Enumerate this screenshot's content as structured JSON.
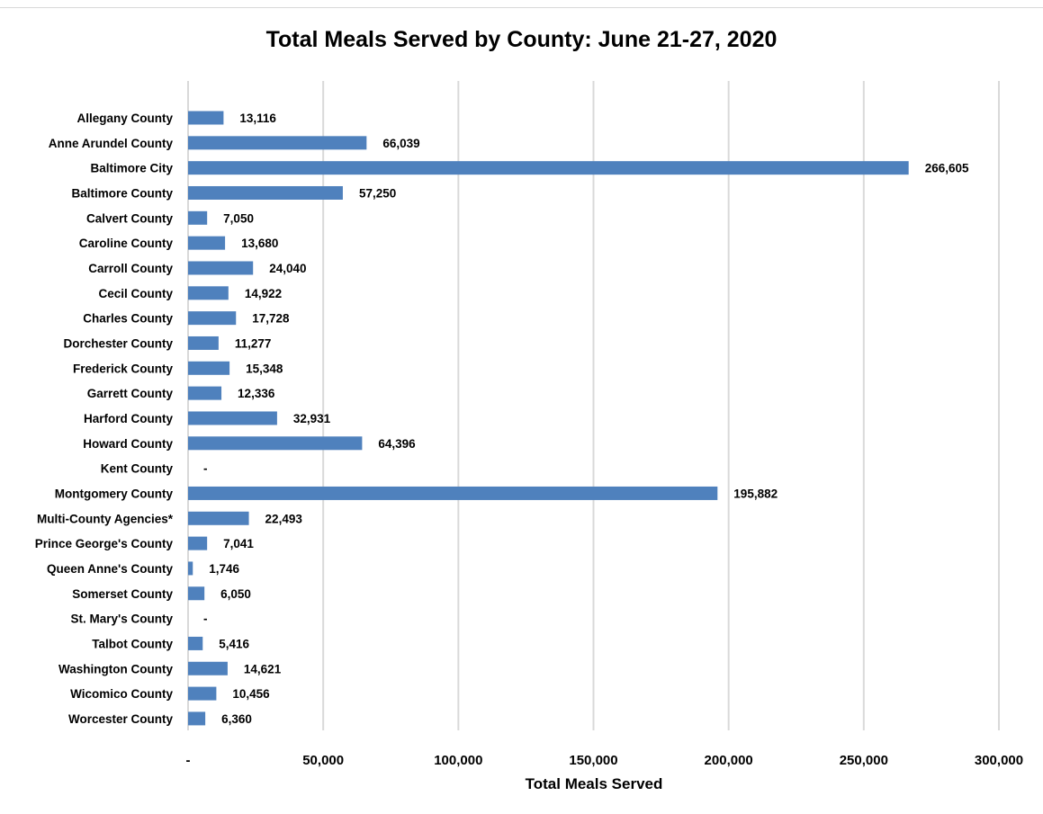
{
  "chart_data": {
    "type": "bar",
    "orientation": "horizontal",
    "title": "Total Meals Served by County: June 21-27, 2020",
    "xlabel": "Total Meals Served",
    "ylabel": "",
    "xlim": [
      0,
      300000
    ],
    "x_ticks": [
      {
        "value": 0,
        "label": "-"
      },
      {
        "value": 50000,
        "label": "50,000"
      },
      {
        "value": 100000,
        "label": "100,000"
      },
      {
        "value": 150000,
        "label": "150,000"
      },
      {
        "value": 200000,
        "label": "200,000"
      },
      {
        "value": 250000,
        "label": "250,000"
      },
      {
        "value": 300000,
        "label": "300,000"
      }
    ],
    "grid": "vertical",
    "legend": "none",
    "bar_color": "#4f81bd",
    "categories": [
      "Allegany County",
      "Anne Arundel County",
      "Baltimore City",
      "Baltimore County",
      "Calvert County",
      "Caroline County",
      "Carroll County",
      "Cecil County",
      "Charles County",
      "Dorchester County",
      "Frederick County",
      "Garrett County",
      "Harford County",
      "Howard County",
      "Kent County",
      "Montgomery County",
      "Multi-County Agencies*",
      "Prince George's County",
      "Queen Anne's County",
      "Somerset County",
      "St. Mary's County",
      "Talbot County",
      "Washington County",
      "Wicomico County",
      "Worcester County"
    ],
    "values": [
      13116,
      66039,
      266605,
      57250,
      7050,
      13680,
      24040,
      14922,
      17728,
      11277,
      15348,
      12336,
      32931,
      64396,
      0,
      195882,
      22493,
      7041,
      1746,
      6050,
      0,
      5416,
      14621,
      10456,
      6360
    ],
    "data_labels": [
      "13,116",
      "66,039",
      "266,605",
      "57,250",
      "7,050",
      "13,680",
      "24,040",
      "14,922",
      "17,728",
      "11,277",
      "15,348",
      "12,336",
      "32,931",
      "64,396",
      "-",
      "195,882",
      "22,493",
      "7,041",
      "1,746",
      "6,050",
      "-",
      "5,416",
      "14,621",
      "10,456",
      "6,360"
    ]
  }
}
